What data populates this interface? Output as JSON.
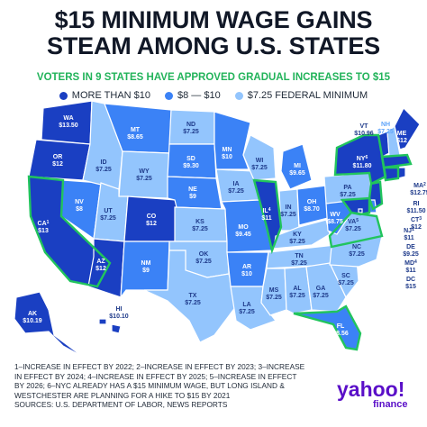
{
  "title_line1": "$15 MINIMUM WAGE GAINS",
  "title_line2": "STEAM AMONG U.S. STATES",
  "subtitle": "VOTERS IN 9 STATES HAVE APPROVED GRADUAL INCREASES TO $15",
  "legend": [
    {
      "label": "MORE THAN $10",
      "color": "#1a3fc2"
    },
    {
      "label": "$8 — $10",
      "color": "#3b82f6"
    },
    {
      "label": "$7.25 FEDERAL MINIMUM",
      "color": "#93c5fd"
    }
  ],
  "approved_outline_color": "#21c45d",
  "states": [
    {
      "abbr": "WA",
      "wage": "$13.50",
      "tier": "high"
    },
    {
      "abbr": "OR",
      "wage": "$12",
      "tier": "high"
    },
    {
      "abbr": "CA",
      "sup": "1",
      "wage": "$13",
      "tier": "high"
    },
    {
      "abbr": "NV",
      "wage": "$8",
      "tier": "mid"
    },
    {
      "abbr": "ID",
      "wage": "$7.25",
      "tier": "low"
    },
    {
      "abbr": "MT",
      "wage": "$8.65",
      "tier": "mid"
    },
    {
      "abbr": "WY",
      "wage": "$7.25",
      "tier": "low"
    },
    {
      "abbr": "UT",
      "wage": "$7.25",
      "tier": "low"
    },
    {
      "abbr": "AZ",
      "wage": "$12",
      "tier": "high"
    },
    {
      "abbr": "CO",
      "wage": "$12",
      "tier": "high"
    },
    {
      "abbr": "NM",
      "wage": "$9",
      "tier": "mid"
    },
    {
      "abbr": "ND",
      "wage": "$7.25",
      "tier": "low"
    },
    {
      "abbr": "SD",
      "wage": "$9.30",
      "tier": "mid"
    },
    {
      "abbr": "NE",
      "wage": "$9",
      "tier": "mid"
    },
    {
      "abbr": "KS",
      "wage": "$7.25",
      "tier": "low"
    },
    {
      "abbr": "OK",
      "wage": "$7.25",
      "tier": "low"
    },
    {
      "abbr": "TX",
      "wage": "$7.25",
      "tier": "low"
    },
    {
      "abbr": "MN",
      "wage": "$10",
      "tier": "mid"
    },
    {
      "abbr": "IA",
      "wage": "$7.25",
      "tier": "low"
    },
    {
      "abbr": "MO",
      "wage": "$9.45",
      "tier": "mid"
    },
    {
      "abbr": "AR",
      "wage": "$10",
      "tier": "mid"
    },
    {
      "abbr": "LA",
      "wage": "$7.25",
      "tier": "low"
    },
    {
      "abbr": "WI",
      "wage": "$7.25",
      "tier": "low"
    },
    {
      "abbr": "IL",
      "sup": "4",
      "wage": "$11",
      "tier": "high"
    },
    {
      "abbr": "MI",
      "wage": "$9.65",
      "tier": "mid"
    },
    {
      "abbr": "IN",
      "wage": "$7.25",
      "tier": "low"
    },
    {
      "abbr": "OH",
      "wage": "$8.70",
      "tier": "mid"
    },
    {
      "abbr": "KY",
      "wage": "$7.25",
      "tier": "low"
    },
    {
      "abbr": "TN",
      "wage": "$7.25",
      "tier": "low"
    },
    {
      "abbr": "MS",
      "wage": "$7.25",
      "tier": "low"
    },
    {
      "abbr": "AL",
      "wage": "$7.25",
      "tier": "low"
    },
    {
      "abbr": "GA",
      "wage": "$7.25",
      "tier": "low"
    },
    {
      "abbr": "FL",
      "wage": "$8.56",
      "tier": "mid"
    },
    {
      "abbr": "SC",
      "wage": "$7.25",
      "tier": "low"
    },
    {
      "abbr": "NC",
      "wage": "$7.25",
      "tier": "low"
    },
    {
      "abbr": "VA",
      "sup": "5",
      "wage": "$7.25",
      "tier": "low"
    },
    {
      "abbr": "WV",
      "wage": "$8.75",
      "tier": "mid"
    },
    {
      "abbr": "PA",
      "wage": "$7.25",
      "tier": "low"
    },
    {
      "abbr": "NY",
      "sup": "6",
      "wage": "$11.80",
      "tier": "high"
    },
    {
      "abbr": "VT",
      "wage": "$10.96",
      "tier": "high"
    },
    {
      "abbr": "NH",
      "wage": "$7.25",
      "tier": "low"
    },
    {
      "abbr": "ME",
      "wage": "$12",
      "tier": "high"
    },
    {
      "abbr": "MA",
      "sup": "2",
      "wage": "$12.75",
      "tier": "high"
    },
    {
      "abbr": "RI",
      "wage": "$11.50",
      "tier": "high"
    },
    {
      "abbr": "CT",
      "sup": "3",
      "wage": "$12",
      "tier": "high"
    },
    {
      "abbr": "NJ",
      "sup": "1",
      "wage": "$11",
      "tier": "high"
    },
    {
      "abbr": "DE",
      "wage": "$9.25",
      "tier": "mid"
    },
    {
      "abbr": "MD",
      "sup": "4",
      "wage": "$11",
      "tier": "high"
    },
    {
      "abbr": "DC",
      "wage": "$15",
      "tier": "high"
    },
    {
      "abbr": "AK",
      "wage": "$10.19",
      "tier": "high"
    },
    {
      "abbr": "HI",
      "wage": "$10.10",
      "tier": "high"
    }
  ],
  "footnote_lines": [
    "1–INCREASE IN EFFECT BY 2022; 2–INCREASE IN EFFECT BY 2023; 3–INCREASE",
    "IN EFFECT BY 2024;  4–INCREASE IN EFFECT BY 2025; 5–INCREASE IN EFFECT",
    "BY 2026; 6–NYC ALREADY HAS A $15 MINIMUM WAGE, BUT LONG ISLAND &",
    "WESTCHESTER ARE PLANNING FOR A HIKE TO $15 BY 2021",
    "SOURCES:  U.S. DEPARTMENT OF LABOR, NEWS REPORTS"
  ],
  "logo_text": "yahoo!",
  "logo_sub": "finance"
}
